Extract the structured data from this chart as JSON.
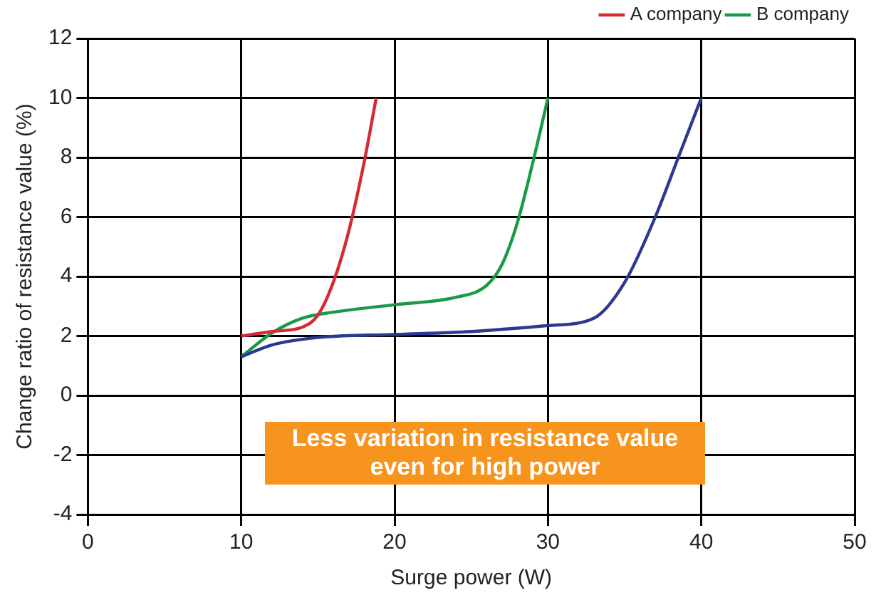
{
  "chart_data": {
    "type": "line",
    "xlabel": "Surge power (W)",
    "ylabel": "Change ratio of resistance value (%)",
    "xlim": [
      0,
      50
    ],
    "xticks": [
      0,
      10,
      20,
      30,
      40,
      50
    ],
    "ylim": [
      -4,
      12
    ],
    "yticks": [
      -4,
      -2,
      0,
      2,
      4,
      6,
      8,
      10,
      12
    ],
    "grid": true,
    "legend": "top right",
    "marker": "none",
    "line_style": "solid",
    "annotations": [
      "Less variation in resistance value even for high power"
    ],
    "series": [
      {
        "color": "#2b3990",
        "x": [
          10,
          12,
          15,
          20,
          25,
          30,
          33,
          35,
          37,
          38.5,
          40
        ],
        "values": [
          1.3,
          1.7,
          1.95,
          2.05,
          2.15,
          2.35,
          2.6,
          3.8,
          6,
          8,
          10
        ]
      },
      {
        "name": "A company",
        "color": "#d42a34",
        "x": [
          10,
          12,
          14,
          15,
          16,
          17,
          18,
          18.8
        ],
        "values": [
          2.0,
          2.15,
          2.3,
          2.7,
          3.8,
          5.5,
          7.8,
          10
        ]
      },
      {
        "name": "B company",
        "color": "#1a9a48",
        "x": [
          10,
          12,
          14,
          16,
          20,
          24,
          26,
          27,
          28,
          29,
          30
        ],
        "values": [
          1.3,
          2.1,
          2.6,
          2.8,
          3.05,
          3.3,
          3.7,
          4.4,
          5.8,
          7.8,
          10
        ]
      }
    ]
  }
}
